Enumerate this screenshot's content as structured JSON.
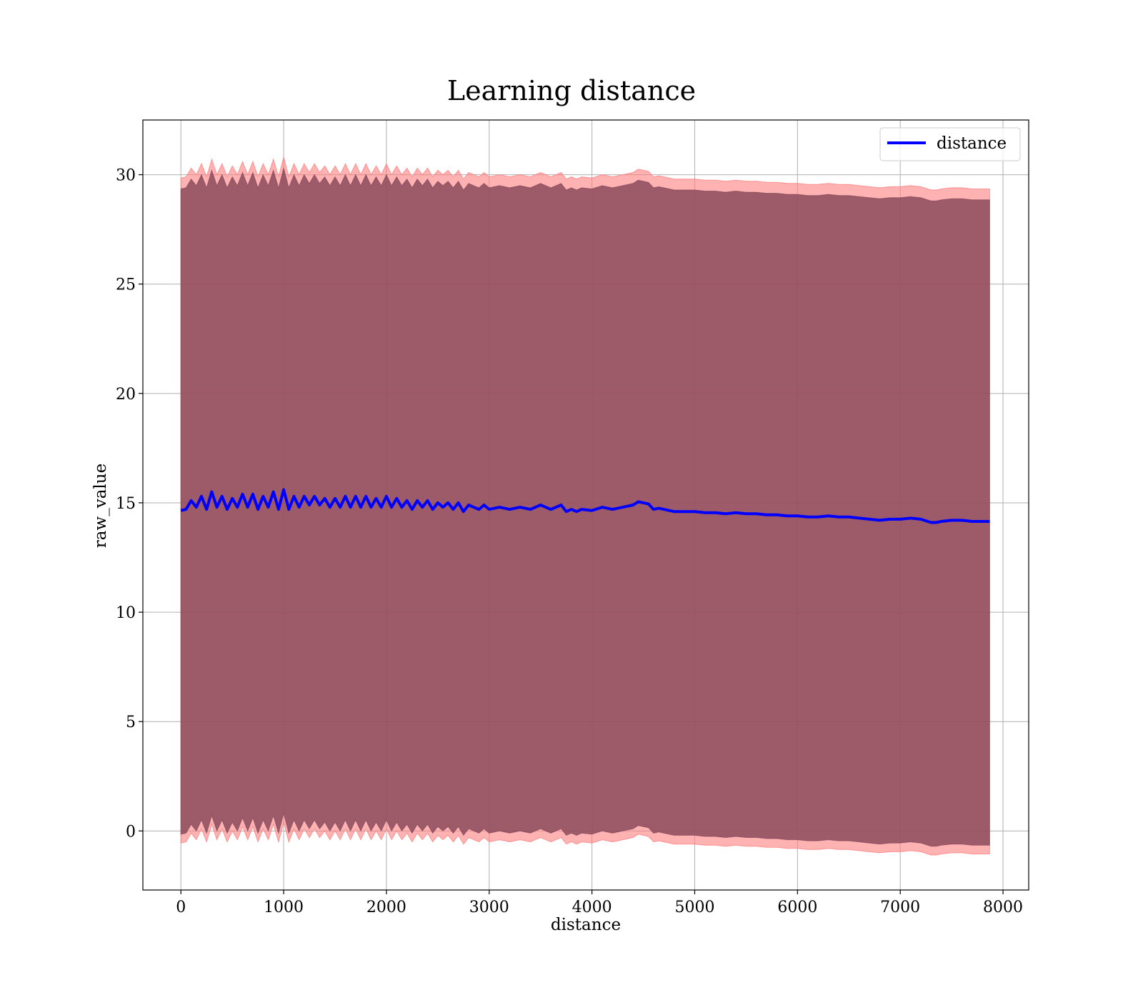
{
  "chart_data": {
    "type": "line",
    "title": "Learning distance",
    "xlabel": "distance",
    "ylabel": "raw_value",
    "xlim": [
      -370,
      8250
    ],
    "ylim": [
      -2.7,
      32.5
    ],
    "xticks": [
      0,
      1000,
      2000,
      3000,
      4000,
      5000,
      6000,
      7000,
      8000
    ],
    "yticks": [
      0,
      5,
      10,
      15,
      20,
      25,
      30
    ],
    "grid": true,
    "legend": {
      "position": "top-right",
      "entries": [
        "distance"
      ]
    },
    "colors": {
      "line": "#0000ff",
      "outer_band": "#ff7f7f",
      "inner_band": "#8c4a5a",
      "grid": "#b0b0b0"
    },
    "series": [
      {
        "name": "distance",
        "x": [
          0,
          50,
          100,
          150,
          200,
          250,
          300,
          350,
          400,
          450,
          500,
          550,
          600,
          650,
          700,
          750,
          800,
          850,
          900,
          950,
          1000,
          1050,
          1100,
          1150,
          1200,
          1250,
          1300,
          1350,
          1400,
          1450,
          1500,
          1550,
          1600,
          1650,
          1700,
          1750,
          1800,
          1850,
          1900,
          1950,
          2000,
          2050,
          2100,
          2150,
          2200,
          2250,
          2300,
          2350,
          2400,
          2450,
          2500,
          2550,
          2600,
          2650,
          2700,
          2750,
          2800,
          2850,
          2900,
          2950,
          3000,
          3100,
          3200,
          3300,
          3400,
          3500,
          3600,
          3700,
          3750,
          3800,
          3850,
          3900,
          4000,
          4100,
          4200,
          4300,
          4400,
          4450,
          4500,
          4550,
          4600,
          4650,
          4700,
          4800,
          4900,
          5000,
          5100,
          5200,
          5300,
          5400,
          5500,
          5600,
          5700,
          5800,
          5900,
          6000,
          6100,
          6200,
          6300,
          6400,
          6500,
          6600,
          6700,
          6800,
          6900,
          7000,
          7100,
          7200,
          7300,
          7350,
          7400,
          7500,
          7600,
          7700,
          7800,
          7870
        ],
        "y": [
          14.65,
          14.7,
          15.1,
          14.8,
          15.3,
          14.7,
          15.5,
          14.8,
          15.3,
          14.7,
          15.2,
          14.8,
          15.4,
          14.8,
          15.4,
          14.7,
          15.3,
          14.8,
          15.5,
          14.7,
          15.6,
          14.7,
          15.3,
          14.8,
          15.3,
          14.9,
          15.3,
          14.9,
          15.2,
          14.8,
          15.2,
          14.8,
          15.3,
          14.8,
          15.3,
          14.8,
          15.3,
          14.8,
          15.2,
          14.8,
          15.3,
          14.8,
          15.2,
          14.8,
          15.1,
          14.7,
          15.1,
          14.8,
          15.1,
          14.7,
          15.0,
          14.8,
          15.0,
          14.7,
          15.0,
          14.6,
          14.9,
          14.8,
          14.7,
          14.9,
          14.7,
          14.8,
          14.7,
          14.8,
          14.7,
          14.9,
          14.7,
          14.9,
          14.6,
          14.7,
          14.6,
          14.7,
          14.65,
          14.8,
          14.7,
          14.8,
          14.9,
          15.05,
          15.0,
          14.95,
          14.7,
          14.75,
          14.7,
          14.6,
          14.6,
          14.6,
          14.55,
          14.55,
          14.5,
          14.55,
          14.5,
          14.5,
          14.45,
          14.45,
          14.4,
          14.4,
          14.35,
          14.35,
          14.4,
          14.35,
          14.35,
          14.3,
          14.25,
          14.2,
          14.25,
          14.25,
          14.3,
          14.25,
          14.1,
          14.1,
          14.15,
          14.2,
          14.2,
          14.15,
          14.15,
          14.15
        ]
      }
    ]
  }
}
